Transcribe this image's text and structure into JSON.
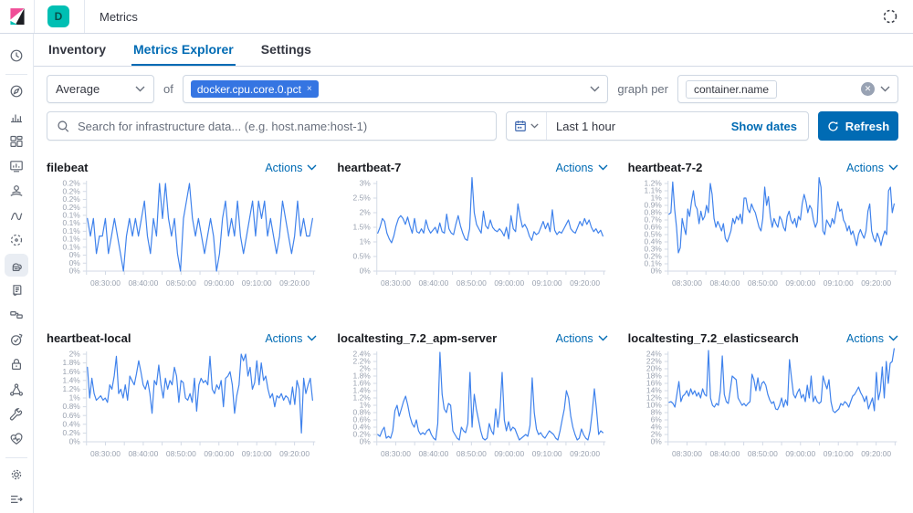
{
  "topbar": {
    "space_badge": "D",
    "breadcrumb": "Metrics"
  },
  "tabs": [
    {
      "label": "Inventory",
      "active": false
    },
    {
      "label": "Metrics Explorer",
      "active": true
    },
    {
      "label": "Settings",
      "active": false
    }
  ],
  "controls": {
    "aggregation_value": "Average",
    "of_label": "of",
    "metric_tag": "docker.cpu.core.0.pct",
    "metric_tag_remove": "×",
    "graph_per_label": "graph per",
    "group_by_tag": "container.name",
    "search_placeholder": "Search for infrastructure data... (e.g. host.name:host-1)",
    "time_range": "Last 1 hour",
    "show_dates_label": "Show dates",
    "refresh_label": "Refresh"
  },
  "sidebar": {
    "items": [
      {
        "icon": "clock-icon"
      },
      {
        "icon": "compass-icon"
      },
      {
        "icon": "bar-chart-icon"
      },
      {
        "icon": "dashboard-icon"
      },
      {
        "icon": "canvas-icon"
      },
      {
        "icon": "maps-icon"
      },
      {
        "icon": "machine-learning-icon"
      },
      {
        "icon": "code-icon"
      },
      {
        "icon": "infrastructure-icon",
        "selected": true
      },
      {
        "icon": "logs-icon"
      },
      {
        "icon": "apm-icon"
      },
      {
        "icon": "uptime-icon"
      },
      {
        "icon": "lock-icon"
      },
      {
        "icon": "graph-icon"
      },
      {
        "icon": "wrench-icon"
      },
      {
        "icon": "heartbeat-icon"
      },
      {
        "icon": "gear-icon"
      },
      {
        "icon": "collapse-icon"
      }
    ]
  },
  "colors": {
    "accent": "#006bb4",
    "line": "#3f82ec",
    "teal": "#00bfb3",
    "pink": "#f04e98",
    "border": "#d3dae6",
    "axis_text": "#9aa2b0",
    "tag_blue": "#3575e2"
  },
  "chart_data": [
    {
      "type": "line",
      "title": "filebeat",
      "actions_label": "Actions",
      "unit": "%",
      "y_max": 0.25,
      "y_labels": [
        "0.2%",
        "0.2%",
        "0.2%",
        "0.2%",
        "0.1%",
        "0.1%",
        "0.1%",
        "0.1%",
        "0.1%",
        "0%",
        "0%",
        "0%"
      ],
      "x_labels": [
        "08:30:00",
        "08:40:00",
        "08:50:00",
        "09:00:00",
        "09:10:00",
        "09:20:00"
      ],
      "values": [
        0.15,
        0.1,
        0.15,
        0.05,
        0.1,
        0.1,
        0.15,
        0.05,
        0.1,
        0.15,
        0.1,
        0.05,
        0,
        0.1,
        0.15,
        0.1,
        0.15,
        0.1,
        0.15,
        0.2,
        0.1,
        0.05,
        0.15,
        0.1,
        0.25,
        0.15,
        0.25,
        0.15,
        0.1,
        0.15,
        0.05,
        0,
        0.15,
        0.2,
        0.25,
        0.15,
        0.1,
        0.15,
        0.1,
        0.05,
        0.1,
        0.15,
        0.1,
        0,
        0.05,
        0.15,
        0.2,
        0.1,
        0.15,
        0.1,
        0.2,
        0.1,
        0.05,
        0.1,
        0.15,
        0.2,
        0.1,
        0.2,
        0.15,
        0.2,
        0.1,
        0.15,
        0.1,
        0.05,
        0.1,
        0.2,
        0.15,
        0.1,
        0.05,
        0.1,
        0.2,
        0.1,
        0.15,
        0.1,
        0.1,
        0.15
      ]
    },
    {
      "type": "line",
      "title": "heartbeat-7",
      "actions_label": "Actions",
      "unit": "%",
      "y_max": 3,
      "y_labels": [
        "3%",
        "2.5%",
        "2%",
        "1.5%",
        "1%",
        "0.5%",
        "0%"
      ],
      "x_labels": [
        "08:30:00",
        "08:40:00",
        "08:50:00",
        "09:00:00",
        "09:10:00",
        "09:20:00"
      ],
      "values": [
        1.3,
        1.5,
        1.8,
        1.7,
        1.3,
        1.1,
        0.97,
        1.2,
        1.55,
        1.8,
        1.9,
        1.8,
        1.6,
        1.85,
        1.55,
        1.3,
        1.8,
        1.35,
        1.3,
        1.45,
        1.3,
        1.75,
        1.45,
        1.3,
        1.4,
        1.5,
        1.3,
        1.65,
        1.35,
        1.3,
        1.95,
        1.45,
        1.3,
        1.25,
        1.6,
        1.9,
        1.55,
        1.3,
        1.1,
        1.05,
        1.45,
        3.2,
        2.0,
        1.6,
        1.45,
        1.3,
        2.05,
        1.55,
        1.45,
        1.75,
        1.5,
        1.4,
        1.35,
        1.45,
        1.35,
        1.2,
        1.5,
        1.1,
        1.9,
        1.45,
        1.35,
        2.3,
        1.85,
        1.5,
        1.6,
        1.45,
        1.2,
        1.05,
        1.35,
        1.25,
        1.3,
        1.5,
        1.7,
        1.45,
        1.65,
        1.35,
        2.1,
        1.4,
        1.25,
        1.35,
        1.3,
        1.45,
        1.6,
        1.75,
        1.45,
        1.35,
        1.3,
        1.5,
        1.7,
        1.55,
        1.8,
        1.6,
        1.75,
        1.5,
        1.35,
        1.45,
        1.3,
        1.4,
        1.2
      ]
    },
    {
      "type": "line",
      "title": "heartbeat-7-2",
      "actions_label": "Actions",
      "unit": "%",
      "y_max": 1.2,
      "y_labels": [
        "1.2%",
        "1.1%",
        "1%",
        "0.9%",
        "0.8%",
        "0.7%",
        "0.6%",
        "0.5%",
        "0.4%",
        "0.3%",
        "0.2%",
        "0.1%",
        "0%"
      ],
      "x_labels": [
        "08:30:00",
        "08:40:00",
        "08:50:00",
        "09:00:00",
        "09:10:00",
        "09:20:00"
      ],
      "values": [
        0.78,
        0.8,
        1.22,
        0.85,
        0.6,
        0.25,
        0.32,
        0.72,
        0.6,
        0.5,
        0.85,
        0.75,
        0.95,
        1.1,
        0.9,
        0.85,
        0.65,
        0.82,
        0.7,
        0.75,
        0.9,
        0.8,
        1.2,
        1.05,
        0.72,
        0.6,
        0.68,
        0.62,
        0.55,
        0.65,
        0.45,
        0.4,
        0.47,
        0.55,
        0.72,
        0.65,
        0.75,
        0.7,
        0.78,
        0.65,
        1.0,
        1.0,
        0.85,
        0.8,
        0.92,
        0.85,
        0.8,
        0.7,
        0.6,
        0.55,
        0.72,
        1.15,
        0.9,
        1.02,
        0.75,
        0.6,
        0.72,
        0.65,
        0.6,
        0.75,
        0.7,
        0.6,
        0.55,
        0.75,
        0.82,
        0.7,
        0.65,
        0.72,
        0.6,
        0.75,
        0.7,
        0.92,
        1.05,
        0.95,
        0.8,
        0.9,
        0.85,
        0.7,
        0.6,
        0.67,
        1.28,
        1.15,
        0.55,
        0.5,
        0.7,
        0.65,
        0.6,
        0.72,
        0.65,
        0.8,
        0.95,
        0.82,
        0.85,
        0.7,
        0.65,
        0.55,
        0.62,
        0.5,
        0.55,
        0.45,
        0.35,
        0.5,
        0.57,
        0.5,
        0.45,
        0.55,
        0.82,
        0.92,
        0.55,
        0.45,
        0.4,
        0.52,
        0.45,
        0.35,
        0.47,
        0.55,
        0.5,
        1.1,
        1.15,
        0.8,
        0.92
      ]
    },
    {
      "type": "line",
      "title": "heartbeat-local",
      "actions_label": "Actions",
      "unit": "%",
      "y_max": 2,
      "y_labels": [
        "2%",
        "1.8%",
        "1.6%",
        "1.4%",
        "1.2%",
        "1%",
        "0.8%",
        "0.6%",
        "0.4%",
        "0.2%",
        "0%"
      ],
      "x_labels": [
        "08:30:00",
        "08:40:00",
        "08:50:00",
        "09:00:00",
        "09:10:00",
        "09:20:00"
      ],
      "values": [
        1.7,
        1.0,
        1.45,
        1.1,
        0.95,
        1.0,
        1.05,
        0.95,
        1.0,
        0.9,
        1.3,
        1.2,
        1.5,
        1.95,
        1.1,
        1.2,
        1.0,
        1.3,
        0.95,
        1.5,
        1.4,
        1.3,
        1.55,
        1.85,
        1.6,
        1.3,
        1.2,
        1.4,
        1.1,
        0.65,
        1.4,
        1.3,
        1.75,
        1.3,
        1.0,
        1.45,
        1.2,
        1.4,
        1.3,
        1.7,
        1.5,
        0.9,
        1.4,
        1.35,
        1.0,
        0.95,
        1.1,
        0.9,
        1.45,
        0.7,
        1.3,
        1.45,
        1.35,
        1.4,
        1.3,
        1.95,
        1.2,
        1.1,
        1.3,
        1.2,
        1.4,
        0.8,
        1.45,
        1.5,
        1.6,
        1.3,
        0.65,
        1.05,
        1.3,
        2.0,
        1.85,
        2.0,
        1.5,
        1.7,
        1.2,
        1.35,
        1.85,
        1.3,
        1.8,
        1.4,
        1.5,
        1.2,
        1.0,
        1.1,
        0.8,
        1.05,
        1.0,
        1.1,
        0.95,
        1.05,
        1.0,
        0.85,
        1.25,
        0.85,
        1.4,
        1.2,
        0.2,
        1.45,
        1.1,
        1.3,
        1.45,
        0.95
      ]
    },
    {
      "type": "line",
      "title": "localtesting_7.2_apm-server",
      "actions_label": "Actions",
      "unit": "%",
      "y_max": 2.4,
      "y_labels": [
        "2.4%",
        "2.2%",
        "2%",
        "1.8%",
        "1.6%",
        "1.4%",
        "1.2%",
        "1%",
        "0.8%",
        "0.6%",
        "0.4%",
        "0.2%",
        "0%"
      ],
      "x_labels": [
        "08:30:00",
        "08:40:00",
        "08:50:00",
        "09:00:00",
        "09:10:00",
        "09:20:00"
      ],
      "values": [
        0.2,
        0.15,
        0.3,
        0.4,
        0.1,
        0.15,
        0.1,
        0.3,
        0.85,
        1.0,
        0.7,
        0.9,
        1.1,
        1.25,
        1.0,
        0.7,
        0.5,
        0.4,
        0.6,
        0.3,
        0.2,
        0.25,
        0.2,
        0.3,
        0.35,
        0.2,
        0.1,
        0.05,
        0.5,
        2.45,
        1.3,
        0.9,
        0.8,
        1.05,
        1.0,
        0.3,
        0.2,
        0.1,
        0.05,
        0.4,
        0.3,
        0.25,
        0.5,
        1.9,
        0.4,
        1.3,
        0.9,
        0.6,
        0.3,
        0.1,
        0.05,
        0.1,
        0.5,
        0.3,
        0.2,
        0.9,
        0.4,
        0.85,
        1.9,
        0.6,
        0.3,
        0.55,
        0.3,
        0.4,
        0.35,
        0.2,
        0.05,
        0.1,
        0.15,
        0.2,
        0.15,
        0.45,
        1.75,
        0.8,
        0.35,
        0.2,
        0.25,
        0.15,
        0.1,
        0.2,
        0.3,
        0.25,
        0.2,
        0.1,
        0.05,
        0.3,
        0.6,
        0.9,
        1.4,
        1.2,
        0.7,
        0.4,
        0.2,
        0.05,
        0.1,
        0.35,
        0.2,
        0.1,
        0.05,
        0.3,
        0.8,
        1.45,
        0.9,
        0.2,
        0.3,
        0.25
      ]
    },
    {
      "type": "line",
      "title": "localtesting_7.2_elasticsearch",
      "actions_label": "Actions",
      "unit": "%",
      "y_max": 24,
      "y_labels": [
        "24%",
        "22%",
        "20%",
        "18%",
        "16%",
        "14%",
        "12%",
        "10%",
        "8%",
        "6%",
        "4%",
        "2%",
        "0%"
      ],
      "x_labels": [
        "08:30:00",
        "08:40:00",
        "08:50:00",
        "09:00:00",
        "09:10:00",
        "09:20:00"
      ],
      "values": [
        10.8,
        11,
        10.5,
        9.5,
        13,
        16.5,
        11,
        12.5,
        13,
        14,
        12.5,
        14.5,
        13,
        14,
        12.5,
        13.5,
        12,
        14.5,
        13,
        12.5,
        25,
        12,
        10,
        9.5,
        10.5,
        10,
        14,
        23.5,
        13,
        11,
        10.5,
        14,
        18,
        17.5,
        17,
        12,
        11,
        10,
        10.5,
        9.8,
        10.5,
        11,
        18.5,
        17,
        14,
        17.5,
        14,
        16,
        16.5,
        15.5,
        13,
        11.5,
        10.5,
        11,
        9,
        8.8,
        10,
        12,
        9.5,
        11.5,
        10,
        22.5,
        17.5,
        13,
        12,
        13.5,
        14.5,
        12,
        13,
        11,
        15.5,
        12,
        18,
        11,
        12.5,
        11,
        10.5,
        11,
        18,
        16,
        14.5,
        17,
        11,
        8.5,
        8,
        8.5,
        9,
        10.5,
        10,
        11,
        10.5,
        9.5,
        11,
        12.5,
        13,
        14,
        15,
        13.5,
        12.5,
        11,
        12.5,
        9,
        10.5,
        12,
        8.5,
        19,
        11.5,
        14,
        20.5,
        12,
        22,
        16,
        21.5,
        22,
        25.5
      ]
    }
  ]
}
